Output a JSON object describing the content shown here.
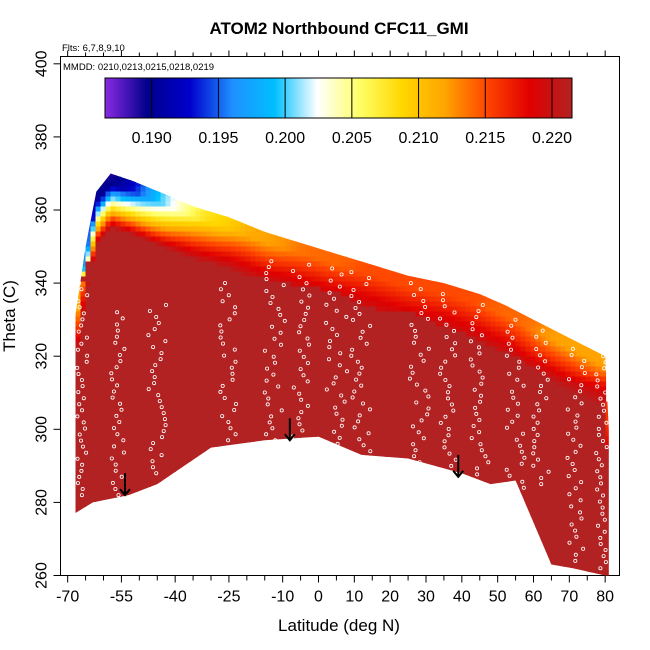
{
  "chart_data": {
    "type": "heatmap",
    "title": "ATOM2 Northbound CFC11_GMI",
    "annotations": [
      "Flts: 6,7,8,9,10",
      "MMDD: 0210,0213,0215,0218,0219"
    ],
    "xlabel": "Latitude (deg N)",
    "ylabel": "Theta (C)",
    "xlim": [
      -72,
      84
    ],
    "ylim": [
      260,
      402
    ],
    "x_ticks": [
      -70,
      -55,
      -40,
      -25,
      -10,
      0,
      10,
      20,
      30,
      40,
      50,
      60,
      70,
      80
    ],
    "x_tick_labels": [
      "-70",
      "-55",
      "-40",
      "-25",
      "-10",
      "0",
      "10",
      "20",
      "30",
      "40",
      "50",
      "60",
      "70",
      "80"
    ],
    "x_minor_ticks": [
      -65,
      -60,
      -50,
      -45,
      -35,
      -30,
      -20,
      -15,
      -5,
      5,
      15,
      25,
      35,
      45,
      55,
      65,
      75
    ],
    "y_ticks": [
      260,
      280,
      300,
      320,
      340,
      360,
      380,
      400
    ],
    "y_tick_labels": [
      "260",
      "280",
      "300",
      "320",
      "340",
      "360",
      "380",
      "400"
    ],
    "colorbar": {
      "range": [
        0.1865,
        0.2215
      ],
      "ticks": [
        0.19,
        0.195,
        0.2,
        0.205,
        0.21,
        0.215,
        0.22
      ],
      "tick_labels": [
        "0.190",
        "0.195",
        "0.200",
        "0.205",
        "0.210",
        "0.215",
        "0.220"
      ],
      "colors": [
        "#8a2be2",
        "#00008b",
        "#0000cd",
        "#1e90ff",
        "#00bfff",
        "#ffffff",
        "#ffff66",
        "#ffd700",
        "#ffa500",
        "#ff4500",
        "#e00000",
        "#b22222"
      ]
    },
    "field": {
      "interior_value": 0.2215,
      "upper_boundary": [
        [
          -68,
          330
        ],
        [
          -65,
          350
        ],
        [
          -62,
          365
        ],
        [
          -58,
          370
        ],
        [
          -55,
          369
        ],
        [
          -52,
          368
        ],
        [
          -47,
          366
        ],
        [
          -42,
          364
        ],
        [
          -35,
          361
        ],
        [
          -25,
          358
        ],
        [
          -15,
          354
        ],
        [
          -5,
          351
        ],
        [
          5,
          348
        ],
        [
          15,
          345
        ],
        [
          25,
          342
        ],
        [
          35,
          340
        ],
        [
          45,
          337
        ],
        [
          52,
          334
        ],
        [
          60,
          330
        ],
        [
          66,
          327
        ],
        [
          72,
          324
        ],
        [
          78,
          321
        ],
        [
          80,
          320
        ],
        [
          81,
          300
        ],
        [
          81,
          260
        ]
      ],
      "lower_boundary": [
        [
          -68,
          277
        ],
        [
          -63,
          280
        ],
        [
          -53,
          282
        ],
        [
          -45,
          285
        ],
        [
          -30,
          295
        ],
        [
          -15,
          297
        ],
        [
          0,
          298
        ],
        [
          12,
          293
        ],
        [
          25,
          292
        ],
        [
          40,
          288
        ],
        [
          48,
          285
        ],
        [
          55,
          286
        ],
        [
          65,
          263
        ],
        [
          71,
          262
        ],
        [
          80,
          260
        ]
      ],
      "boundary_values": [
        [
          -66,
          356,
          0.196
        ],
        [
          -62,
          362,
          0.19
        ],
        [
          -58,
          366,
          0.1875
        ],
        [
          -55,
          362,
          0.191
        ],
        [
          -52,
          358,
          0.195
        ],
        [
          -47,
          362,
          0.2
        ],
        [
          -40,
          361,
          0.205
        ],
        [
          -30,
          357,
          0.209
        ],
        [
          -15,
          352,
          0.212
        ],
        [
          0,
          349,
          0.214
        ],
        [
          20,
          343,
          0.215
        ],
        [
          40,
          338,
          0.215
        ],
        [
          55,
          332,
          0.214
        ],
        [
          70,
          325,
          0.212
        ],
        [
          78,
          321,
          0.212
        ],
        [
          80,
          305,
          0.216
        ],
        [
          -67,
          330,
          0.212
        ],
        [
          -67,
          315,
          0.217
        ]
      ]
    },
    "profiles": [
      {
        "x_center": -66,
        "width": 3,
        "y_from": 282,
        "y_to": 340
      },
      {
        "x_center": -56,
        "width": 4,
        "y_from": 282,
        "y_to": 332
      },
      {
        "x_center": -45,
        "width": 5,
        "y_from": 288,
        "y_to": 334
      },
      {
        "x_center": -25,
        "width": 5,
        "y_from": 297,
        "y_to": 340
      },
      {
        "x_center": -12,
        "width": 6,
        "y_from": 297,
        "y_to": 346
      },
      {
        "x_center": -5,
        "width": 5,
        "y_from": 298,
        "y_to": 345
      },
      {
        "x_center": 5,
        "width": 6,
        "y_from": 296,
        "y_to": 344
      },
      {
        "x_center": 12,
        "width": 6,
        "y_from": 294,
        "y_to": 343
      },
      {
        "x_center": 28,
        "width": 6,
        "y_from": 291,
        "y_to": 340
      },
      {
        "x_center": 36,
        "width": 5,
        "y_from": 290,
        "y_to": 337
      },
      {
        "x_center": 45,
        "width": 5,
        "y_from": 286,
        "y_to": 334
      },
      {
        "x_center": 55,
        "width": 5,
        "y_from": 284,
        "y_to": 330
      },
      {
        "x_center": 62,
        "width": 5,
        "y_from": 285,
        "y_to": 327
      },
      {
        "x_center": 72,
        "width": 5,
        "y_from": 264,
        "y_to": 322
      },
      {
        "x_center": 79,
        "width": 3,
        "y_from": 262,
        "y_to": 320
      }
    ],
    "arrows": [
      {
        "x": -54,
        "y_from": 288,
        "y_to": 282
      },
      {
        "x": -8,
        "y_from": 303,
        "y_to": 297
      },
      {
        "x": 39,
        "y_from": 293,
        "y_to": 287
      }
    ]
  }
}
